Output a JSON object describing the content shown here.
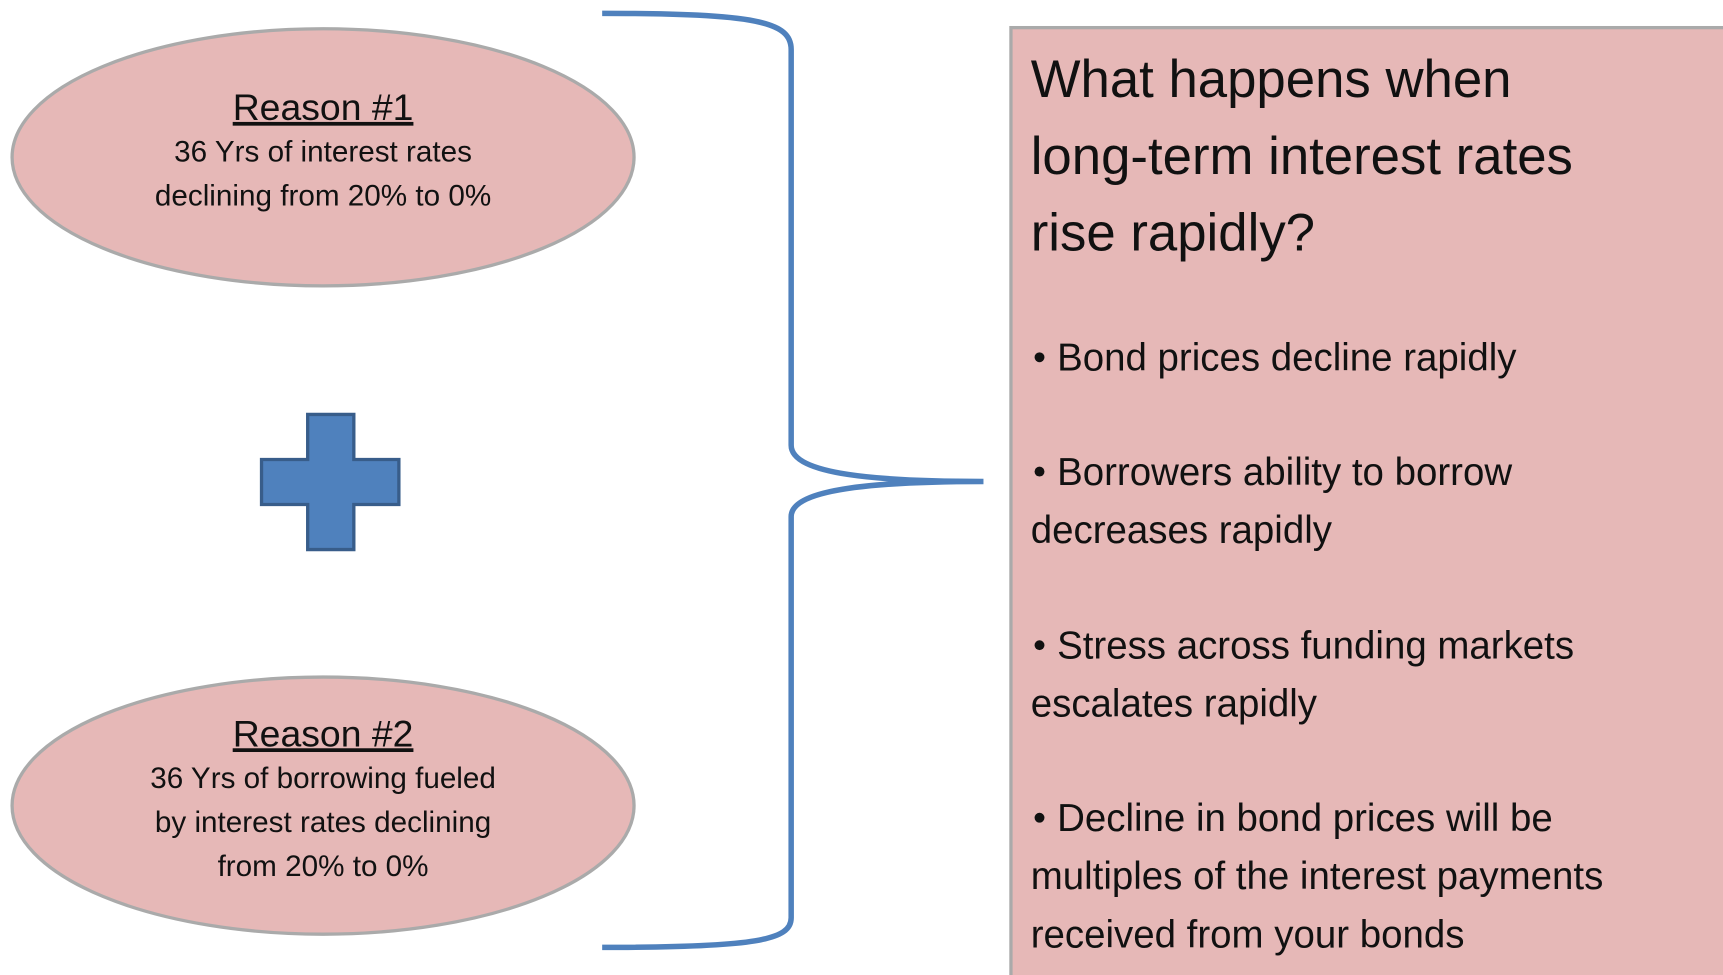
{
  "reasons": [
    {
      "title": "Reason #1",
      "lines": [
        "36 Yrs of interest rates",
        "declining from 20% to 0%"
      ]
    },
    {
      "title": "Reason #2",
      "lines": [
        "36 Yrs of borrowing fueled",
        "by interest rates declining",
        "from 20% to 0%"
      ]
    }
  ],
  "box": {
    "title": [
      "What happens when",
      "long-term interest rates",
      "rise rapidly?"
    ],
    "bullets": [
      [
        "Bond prices decline rapidly"
      ],
      [
        "Borrowers ability to borrow",
        "decreases rapidly"
      ],
      [
        "Stress across funding markets",
        "escalates rapidly"
      ],
      [
        "Decline in bond prices will be",
        "multiples of the interest payments",
        "received from your bonds"
      ]
    ]
  }
}
